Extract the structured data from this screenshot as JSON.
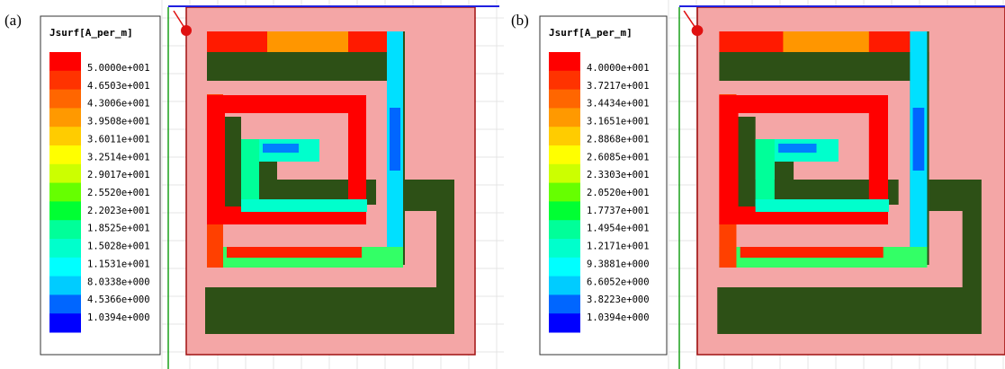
{
  "panels": [
    {
      "label": "(a)",
      "legend": {
        "title": "Jsurf[A_per_m]",
        "labels": [
          "5.0000e+001",
          "4.6503e+001",
          "4.3006e+001",
          "3.9508e+001",
          "3.6011e+001",
          "3.2514e+001",
          "2.9017e+001",
          "2.5520e+001",
          "2.2023e+001",
          "1.8525e+001",
          "1.5028e+001",
          "1.1531e+001",
          "8.0338e+000",
          "4.5366e+000",
          "1.0394e+000"
        ]
      }
    },
    {
      "label": "(b)",
      "legend": {
        "title": "Jsurf[A_per_m]",
        "labels": [
          "4.0000e+001",
          "3.7217e+001",
          "3.4434e+001",
          "3.1651e+001",
          "2.8868e+001",
          "2.6085e+001",
          "2.3303e+001",
          "2.0520e+001",
          "1.7737e+001",
          "1.4954e+001",
          "1.2171e+001",
          "9.3881e+000",
          "6.6052e+000",
          "3.8223e+000",
          "1.0394e+000"
        ]
      }
    }
  ]
}
